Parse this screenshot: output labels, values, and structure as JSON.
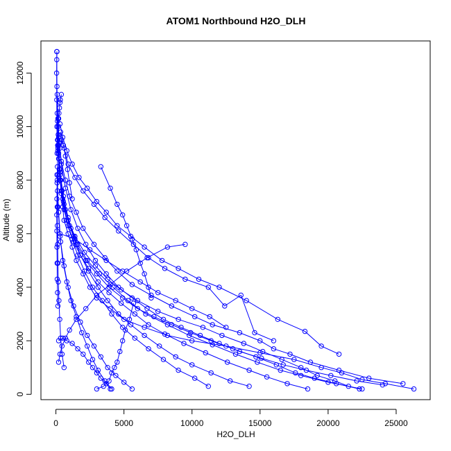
{
  "chart_data": {
    "type": "line",
    "title": "ATOM1 Northbound H2O_DLH",
    "xlabel": "H2O_DLH",
    "ylabel": "Altitude (m)",
    "xlim": [
      -1100,
      27500
    ],
    "ylim": [
      -200,
      13200
    ],
    "x_ticks": [
      0,
      5000,
      10000,
      15000,
      20000,
      25000
    ],
    "y_ticks": [
      0,
      2000,
      4000,
      6000,
      8000,
      10000,
      12000
    ],
    "x_tick_labels": [
      "0",
      "5000",
      "10000",
      "15000",
      "20000",
      "25000"
    ],
    "y_tick_labels": [
      "0",
      "2000",
      "4000",
      "6000",
      "8000",
      "10000",
      "12000"
    ],
    "grid": false,
    "legend": "none",
    "marker": "open-circle",
    "line_color": "#0000ff",
    "series": [
      {
        "x": [
          26300,
          24200,
          22500,
          21000,
          19500,
          17500,
          15000,
          12500,
          10000,
          8200,
          6500,
          5000,
          4000,
          3000,
          2500,
          2000,
          1500,
          1200,
          900,
          600,
          500,
          400,
          300,
          200,
          150,
          100,
          80,
          60
        ],
        "y": [
          200,
          400,
          550,
          800,
          1000,
          1300,
          1550,
          1800,
          2000,
          2200,
          2500,
          2800,
          3200,
          3600,
          4000,
          4500,
          5000,
          5500,
          6000,
          6500,
          7000,
          7500,
          8000,
          8800,
          9500,
          10500,
          11500,
          12800
        ]
      },
      {
        "x": [
          25500,
          23000,
          20800,
          18700,
          17200,
          16000,
          15000,
          13500,
          11500,
          10200,
          8500,
          7000,
          5600,
          4500,
          3600,
          2800,
          2000,
          1500,
          1000,
          700,
          400,
          250,
          150,
          100
        ],
        "y": [
          400,
          600,
          900,
          1200,
          1500,
          1700,
          2000,
          2300,
          2600,
          2900,
          3300,
          3700,
          4100,
          4600,
          5100,
          5600,
          6200,
          6800,
          7400,
          8000,
          8700,
          9400,
          10300,
          11200
        ]
      },
      {
        "x": [
          22500,
          20000,
          18000,
          16500,
          14800,
          13200,
          11500,
          9800,
          8200,
          6600,
          5300,
          4200,
          3200,
          2300,
          1600,
          1100,
          700,
          450,
          300,
          200,
          120
        ],
        "y": [
          200,
          450,
          700,
          900,
          1200,
          1500,
          1850,
          2200,
          2600,
          3000,
          3500,
          4000,
          4500,
          5000,
          5600,
          6200,
          6900,
          7600,
          8400,
          9300,
          10200
        ]
      },
      {
        "x": [
          21500,
          20500,
          19200,
          18000,
          16600,
          15200,
          13800,
          12200,
          10800,
          9000,
          7500,
          6000,
          4800,
          3800,
          2900,
          2100,
          1400,
          900,
          550,
          350,
          180
        ],
        "y": [
          300,
          500,
          700,
          1000,
          1300,
          1600,
          1900,
          2200,
          2500,
          2800,
          3100,
          3500,
          3900,
          4300,
          4800,
          5300,
          5900,
          6500,
          7200,
          8000,
          9000
        ]
      },
      {
        "x": [
          18500,
          17000,
          15500,
          14200,
          12600,
          11000,
          9400,
          8000,
          6800,
          5800,
          4800,
          3900,
          3100,
          2400,
          1800,
          1300,
          900,
          600,
          400,
          250,
          130
        ],
        "y": [
          200,
          400,
          650,
          900,
          1200,
          1550,
          1900,
          2250,
          2600,
          3000,
          3400,
          3800,
          4200,
          4700,
          5200,
          5700,
          6300,
          6900,
          7600,
          8400,
          9300
        ]
      },
      {
        "x": [
          20800,
          19500,
          18300,
          16300,
          14000,
          12000,
          10500,
          9000,
          7800,
          6500,
          5500,
          4500,
          3700,
          3000,
          2300,
          1700,
          1200,
          800,
          500,
          300
        ],
        "y": [
          1500,
          1800,
          2350,
          2800,
          3500,
          4000,
          4300,
          4700,
          5000,
          5500,
          5900,
          6300,
          6800,
          7200,
          7700,
          8100,
          8600,
          9100,
          9600,
          10100
        ]
      },
      {
        "x": [
          16000,
          14600,
          13600,
          12400,
          11200,
          9500,
          8000,
          6800,
          5700,
          4600,
          3600,
          2800,
          2000,
          1400,
          900,
          600,
          350
        ],
        "y": [
          2000,
          2300,
          3700,
          3300,
          4000,
          4300,
          4700,
          5100,
          5600,
          6100,
          6600,
          7100,
          7600,
          8100,
          8600,
          9200,
          9800
        ]
      },
      {
        "x": [
          9500,
          8200,
          6700,
          5200,
          4000,
          3000,
          2200,
          1500,
          1000,
          700,
          450,
          300,
          200
        ],
        "y": [
          5600,
          5500,
          5100,
          4600,
          4100,
          3700,
          3200,
          2800,
          2400,
          2100,
          1800,
          1500,
          1200
        ]
      },
      {
        "x": [
          3300,
          4000,
          4500,
          4900,
          5200,
          5600,
          5900,
          6200,
          6500,
          6800,
          7000
        ],
        "y": [
          8500,
          7700,
          7100,
          6700,
          6300,
          5800,
          5400,
          4900,
          4500,
          4000,
          3600
        ]
      },
      {
        "x": [
          4100,
          3600,
          3100,
          2700,
          2300,
          1900,
          1500,
          1100,
          800,
          500,
          300,
          150,
          80
        ],
        "y": [
          200,
          500,
          900,
          1300,
          1800,
          2300,
          2900,
          3500,
          4200,
          5000,
          5900,
          7000,
          8200
        ]
      },
      {
        "x": [
          5600,
          5000,
          4400,
          3800,
          3300,
          2800,
          2300,
          1800,
          1300,
          900,
          600,
          350,
          200,
          100
        ],
        "y": [
          200,
          450,
          700,
          1000,
          1400,
          1800,
          2200,
          2700,
          3300,
          4000,
          4800,
          5700,
          6800,
          8000
        ]
      },
      {
        "x": [
          3000,
          3500,
          3900,
          4100,
          4300,
          4500,
          4700,
          4900,
          5100,
          5400,
          5700
        ],
        "y": [
          200,
          300,
          500,
          800,
          1000,
          1200,
          1600,
          2000,
          2400,
          2800,
          3400
        ]
      },
      {
        "x": [
          200,
          500,
          800,
          1200,
          1600,
          2000,
          2400,
          2700,
          3000,
          3300,
          3700,
          4000
        ],
        "y": [
          2000,
          2100,
          2000,
          1900,
          1700,
          1500,
          1200,
          1000,
          800,
          600,
          400,
          200
        ]
      },
      {
        "x": [
          300,
          1400,
          2500,
          3700,
          4900,
          6200,
          7500,
          8800,
          10000,
          11300,
          12500
        ],
        "y": [
          6000,
          5800,
          5400,
          5000,
          4600,
          4200,
          3800,
          3500,
          3200,
          2900,
          2500
        ]
      },
      {
        "x": [
          22300,
          20600,
          19000,
          17600,
          16200,
          14700,
          13000,
          11400,
          9900,
          8500,
          7200,
          6000,
          4900,
          3900,
          3000,
          2200,
          1500,
          1000,
          600,
          350,
          200
        ],
        "y": [
          200,
          400,
          600,
          800,
          1100,
          1400,
          1700,
          2000,
          2300,
          2600,
          2900,
          3200,
          3600,
          4000,
          4500,
          5000,
          5600,
          6300,
          7100,
          8000,
          9000
        ]
      },
      {
        "x": [
          24000,
          22100,
          20200,
          18400,
          16700,
          15100,
          13500,
          12000,
          10600,
          9200,
          7900,
          6700,
          5600,
          4600,
          3700,
          2900,
          2200,
          1600,
          1100,
          700,
          400,
          200
        ],
        "y": [
          350,
          500,
          700,
          900,
          1100,
          1350,
          1600,
          1900,
          2200,
          2500,
          2800,
          3200,
          3600,
          4000,
          4500,
          5000,
          5600,
          6200,
          6900,
          7700,
          8600,
          9600
        ]
      },
      {
        "x": [
          11200,
          10200,
          9000,
          7900,
          6800,
          5800,
          4900,
          4100,
          3400,
          2700,
          2100,
          1600,
          1200,
          800,
          500,
          300,
          150
        ],
        "y": [
          300,
          600,
          900,
          1300,
          1700,
          2100,
          2500,
          3000,
          3500,
          4000,
          4600,
          5200,
          5800,
          6500,
          7300,
          8200,
          9200
        ]
      },
      {
        "x": [
          14200,
          12800,
          11400,
          10000,
          8800,
          7600,
          6500,
          5500,
          4600,
          3800,
          3100,
          2400,
          1800,
          1300,
          900,
          550,
          300,
          150
        ],
        "y": [
          300,
          500,
          800,
          1100,
          1400,
          1800,
          2200,
          2600,
          3000,
          3500,
          4000,
          4600,
          5200,
          5900,
          6600,
          7400,
          8300,
          9300
        ]
      },
      {
        "x": [
          150,
          120,
          100,
          90,
          80,
          70,
          60,
          70,
          90,
          110,
          140,
          170,
          200,
          260,
          320,
          400,
          300,
          220,
          160,
          120,
          90,
          70,
          60,
          50,
          60,
          80
        ],
        "y": [
          3300,
          3800,
          4300,
          4900,
          5500,
          6100,
          6700,
          7300,
          7900,
          8500,
          9100,
          9700,
          10300,
          10700,
          11000,
          11200,
          10900,
          10500,
          10000,
          9500,
          9000,
          10000,
          11000,
          12000,
          12500,
          12800
        ]
      },
      {
        "x": [
          600,
          450,
          350,
          280,
          220,
          180,
          150,
          130,
          110,
          100,
          120,
          160,
          220,
          300,
          420,
          550,
          700,
          850,
          1000,
          1200
        ],
        "y": [
          1000,
          1500,
          2100,
          2800,
          3500,
          4200,
          4900,
          5600,
          6300,
          7000,
          7600,
          8200,
          8800,
          9200,
          9500,
          9300,
          8900,
          8400,
          7900,
          7300
        ]
      }
    ]
  }
}
